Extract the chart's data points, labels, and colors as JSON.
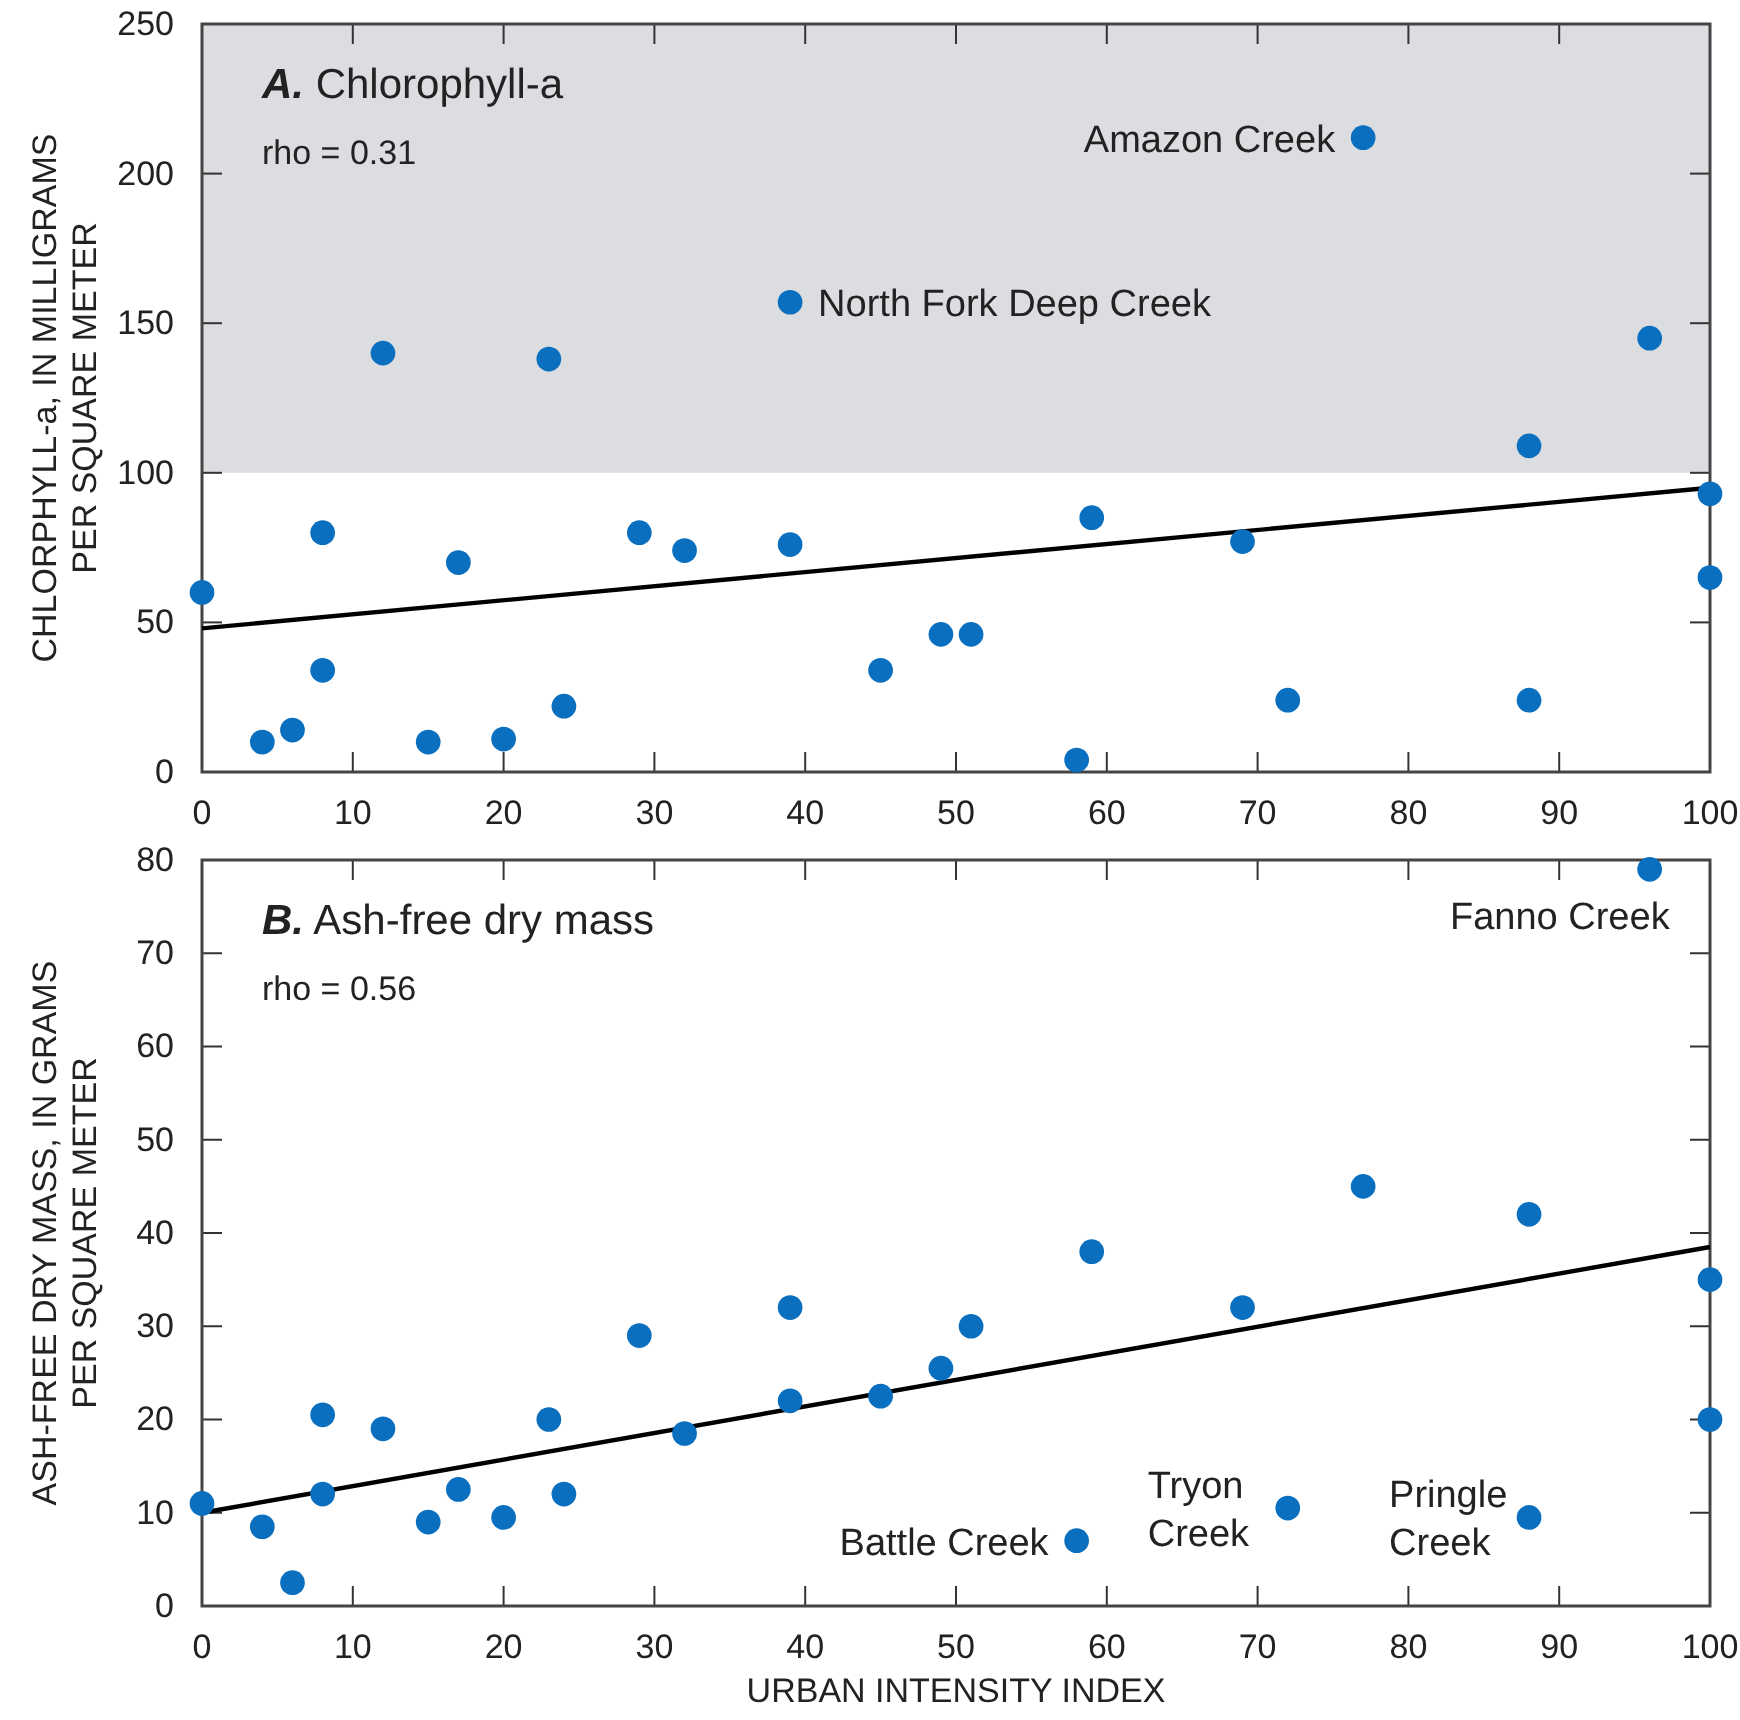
{
  "chart_data": [
    {
      "type": "scatter",
      "title": "A. Chlorophyll-a",
      "ylabel": "CHLORPHYLL-a, IN MILLIGRAMS PER SQUARE METER",
      "xlim": [
        0,
        100
      ],
      "xticks": [
        0,
        10,
        20,
        30,
        40,
        50,
        60,
        70,
        80,
        90,
        100
      ],
      "ylim": [
        0,
        250
      ],
      "yticks": [
        0,
        50,
        100,
        150,
        200,
        250
      ],
      "grid": false,
      "bands": [
        {
          "axis": "y",
          "from": 100,
          "to": 250,
          "color": "#dcdde0"
        }
      ],
      "annotations": [
        "rho = 0.31",
        {
          "text": "North Fork Deep Creek",
          "x": 39,
          "y": 157
        },
        {
          "text": "Amazon Creek",
          "x": 77,
          "y": 212
        }
      ],
      "series": [
        {
          "color": "#0b6fbf",
          "marker": "circle",
          "x": [
            0,
            4,
            6,
            8,
            8,
            12,
            15,
            17,
            20,
            23,
            24,
            29,
            32,
            39,
            39,
            45,
            49,
            51,
            58,
            59,
            69,
            72,
            77,
            88,
            88,
            96,
            100,
            100
          ],
          "values": [
            60,
            10,
            14,
            80,
            34,
            140,
            10,
            70,
            11,
            138,
            22,
            80,
            74,
            157,
            76,
            34,
            46,
            46,
            4,
            85,
            77,
            24,
            212,
            109,
            24,
            145,
            93,
            65
          ]
        },
        {
          "type": "line",
          "color": "#000000",
          "x": [
            0,
            100
          ],
          "values": [
            48,
            95
          ]
        }
      ]
    },
    {
      "type": "scatter",
      "title": "B. Ash-free dry mass",
      "xlabel": "URBAN INTENSITY INDEX",
      "ylabel": "ASH-FREE DRY MASS, IN GRAMS PER SQUARE METER",
      "xlim": [
        0,
        100
      ],
      "xticks": [
        0,
        10,
        20,
        30,
        40,
        50,
        60,
        70,
        80,
        90,
        100
      ],
      "ylim": [
        0,
        80
      ],
      "yticks": [
        0,
        10,
        20,
        30,
        40,
        50,
        60,
        70,
        80
      ],
      "grid": false,
      "annotations": [
        "rho = 0.56",
        {
          "text": "Fanno Creek",
          "x": 96,
          "y": 79
        },
        {
          "text": "Battle Creek",
          "x": 58,
          "y": 7
        },
        {
          "text": "Tryon Creek",
          "x": 72,
          "y": 10.5
        },
        {
          "text": "Pringle Creek",
          "x": 88,
          "y": 9.5
        }
      ],
      "series": [
        {
          "color": "#0b6fbf",
          "marker": "circle",
          "x": [
            0,
            4,
            6,
            8,
            8,
            12,
            15,
            17,
            20,
            23,
            24,
            29,
            32,
            39,
            39,
            45,
            49,
            51,
            58,
            59,
            69,
            72,
            77,
            88,
            88,
            96,
            100,
            100
          ],
          "values": [
            11,
            8.5,
            2.5,
            20.5,
            12,
            19,
            9,
            12.5,
            9.5,
            20,
            12,
            29,
            18.5,
            32,
            22,
            22.5,
            25.5,
            30,
            7,
            38,
            32,
            10.5,
            45,
            42,
            9.5,
            79,
            35,
            20
          ]
        },
        {
          "type": "line",
          "color": "#000000",
          "x": [
            0,
            100
          ],
          "values": [
            10,
            38.5
          ]
        }
      ]
    }
  ]
}
